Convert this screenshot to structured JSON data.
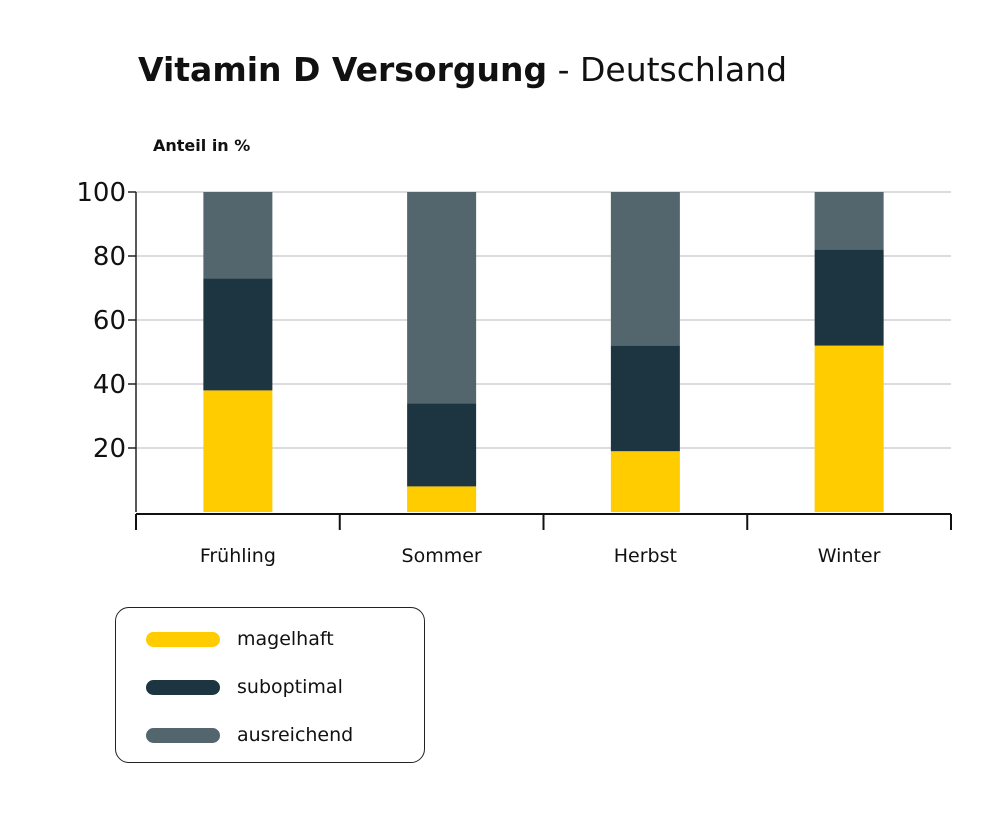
{
  "chart_data": {
    "type": "bar",
    "stacked": true,
    "title_bold": "Vitamin D Versorgung",
    "title_rest": " - Deutschland",
    "ylabel": "Anteil in %",
    "xlabel": "",
    "ylim": [
      0,
      100
    ],
    "yticks": [
      20,
      40,
      60,
      80,
      100
    ],
    "grid": true,
    "categories": [
      "Frühling",
      "Sommer",
      "Herbst",
      "Winter"
    ],
    "series": [
      {
        "name": "magelhaft",
        "color": "#FFCC00",
        "values": [
          38,
          8,
          19,
          52
        ]
      },
      {
        "name": "suboptimal",
        "color": "#1C3540",
        "values": [
          35,
          26,
          33,
          30
        ]
      },
      {
        "name": "ausreichend",
        "color": "#53666E",
        "values": [
          27,
          66,
          48,
          18
        ]
      }
    ],
    "legend_placement": "bottom-left"
  }
}
